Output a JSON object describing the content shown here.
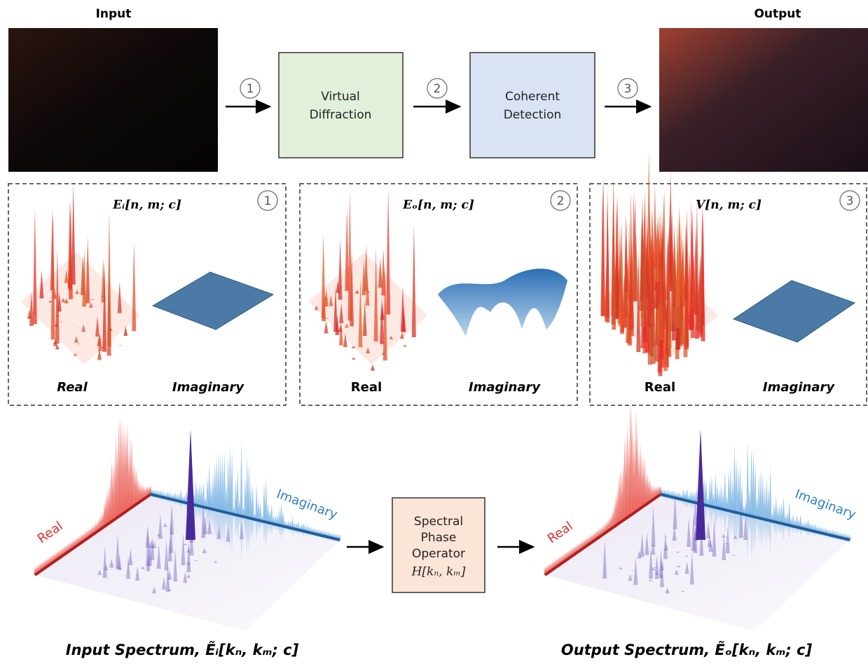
{
  "header": {
    "input_label": "Input",
    "output_label": "Output"
  },
  "pipeline": {
    "step_numbers": [
      1,
      2,
      3
    ],
    "blocks": [
      [
        "Virtual",
        "Diffraction"
      ],
      [
        "Coherent",
        "Detection"
      ]
    ]
  },
  "panels": [
    {
      "formula": "Eᵢ[n, m; c]",
      "number": 1,
      "real": "Real",
      "imaginary": "Imaginary"
    },
    {
      "formula": "Eₒ[n, m; c]",
      "number": 2,
      "real": "Real",
      "imaginary": "Imaginary"
    },
    {
      "formula": "V[n, m; c]",
      "number": 3,
      "real": "Real",
      "imaginary": "Imaginary"
    }
  ],
  "spectra": {
    "input": {
      "real": "Real",
      "imaginary": "Imaginary",
      "caption": "Input Spectrum, Ẽᵢ[kₙ, kₘ; c]"
    },
    "output": {
      "real": "Real",
      "imaginary": "Imaginary",
      "caption": "Output Spectrum, Ẽₒ[kₙ, kₘ; c]"
    },
    "operator": [
      "Spectral",
      "Phase",
      "Operator",
      "H[kₙ, kₘ]"
    ]
  }
}
